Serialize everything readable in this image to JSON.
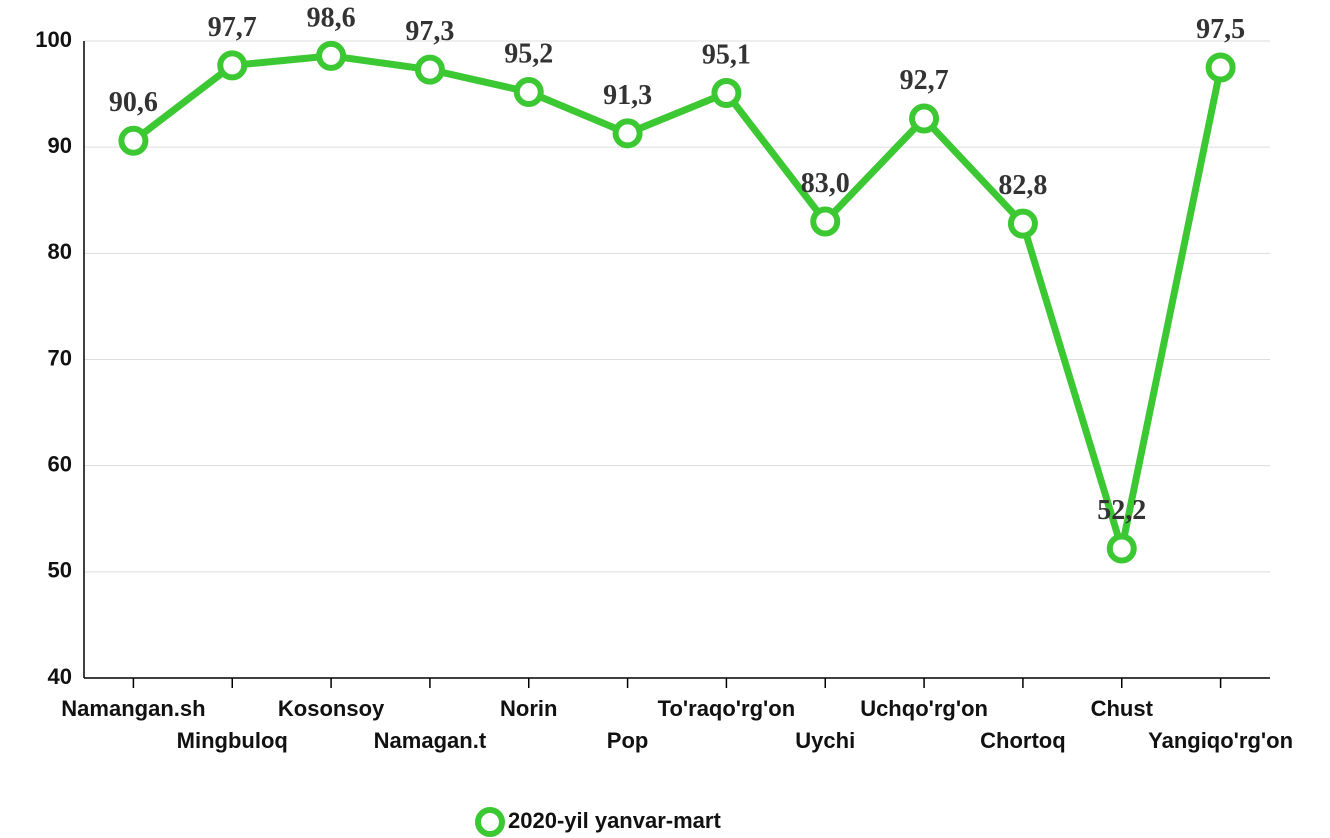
{
  "chart_data": {
    "type": "line",
    "categories": [
      "Namangan.sh",
      "Mingbuloq",
      "Kosonsoy",
      "Namagan.t",
      "Norin",
      "Pop",
      "To'raqo'rg'on",
      "Uychi",
      "Uchqo'rg'on",
      "Chortoq",
      "Chust",
      "Yangiqo'rg'on"
    ],
    "series": [
      {
        "name": "2020-yil yanvar-mart",
        "color": "#3cc832",
        "values": [
          90.6,
          97.7,
          98.6,
          97.3,
          95.2,
          91.3,
          95.1,
          83.0,
          92.7,
          82.8,
          52.2,
          97.5
        ],
        "value_labels": [
          "90,6",
          "97,7",
          "98,6",
          "97,3",
          "95,2",
          "91,3",
          "95,1",
          "83,0",
          "92,7",
          "82,8",
          "52,2",
          "97,5"
        ]
      }
    ],
    "ylim": [
      40,
      100
    ],
    "yticks": [
      40,
      50,
      60,
      70,
      80,
      90,
      100
    ],
    "grid": true,
    "legend": "bottom"
  }
}
